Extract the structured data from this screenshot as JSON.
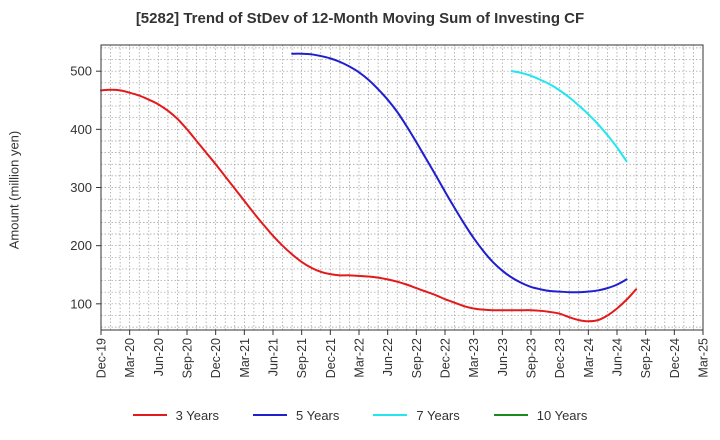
{
  "chart_data": {
    "type": "line",
    "title": "[5282]  Trend of StDev of 12-Month Moving Sum of Investing CF",
    "xlabel": "",
    "ylabel": "Amount (million yen)",
    "ylim": [
      55,
      545
    ],
    "yticks": [
      100,
      200,
      300,
      400,
      500
    ],
    "x_tick_labels": [
      "Dec-19",
      "Mar-20",
      "Jun-20",
      "Sep-20",
      "Dec-20",
      "Mar-21",
      "Jun-21",
      "Sep-21",
      "Dec-21",
      "Mar-22",
      "Jun-22",
      "Sep-22",
      "Dec-22",
      "Mar-23",
      "Jun-23",
      "Sep-23",
      "Dec-23",
      "Mar-24",
      "Jun-24",
      "Sep-24",
      "Dec-24",
      "Mar-25"
    ],
    "grid": true,
    "legend_position": "bottom",
    "series": [
      {
        "name": "3 Years",
        "color": "#e31a1c",
        "points": [
          [
            "Dec-19",
            467
          ],
          [
            "Jan-20",
            468
          ],
          [
            "Feb-20",
            467
          ],
          [
            "Mar-20",
            463
          ],
          [
            "Apr-20",
            458
          ],
          [
            "May-20",
            451
          ],
          [
            "Jun-20",
            443
          ],
          [
            "Jul-20",
            432
          ],
          [
            "Aug-20",
            418
          ],
          [
            "Sep-20",
            400
          ],
          [
            "Oct-20",
            380
          ],
          [
            "Nov-20",
            360
          ],
          [
            "Dec-20",
            340
          ],
          [
            "Jan-21",
            319
          ],
          [
            "Feb-21",
            298
          ],
          [
            "Mar-21",
            277
          ],
          [
            "Apr-21",
            256
          ],
          [
            "May-21",
            236
          ],
          [
            "Jun-21",
            217
          ],
          [
            "Jul-21",
            200
          ],
          [
            "Aug-21",
            185
          ],
          [
            "Sep-21",
            172
          ],
          [
            "Oct-21",
            162
          ],
          [
            "Nov-21",
            155
          ],
          [
            "Dec-21",
            151
          ],
          [
            "Jan-22",
            149
          ],
          [
            "Feb-22",
            149
          ],
          [
            "Mar-22",
            148
          ],
          [
            "Apr-22",
            147
          ],
          [
            "May-22",
            145
          ],
          [
            "Jun-22",
            142
          ],
          [
            "Jul-22",
            138
          ],
          [
            "Aug-22",
            133
          ],
          [
            "Sep-22",
            127
          ],
          [
            "Oct-22",
            121
          ],
          [
            "Nov-22",
            115
          ],
          [
            "Dec-22",
            108
          ],
          [
            "Jan-23",
            102
          ],
          [
            "Feb-23",
            96
          ],
          [
            "Mar-23",
            92
          ],
          [
            "Apr-23",
            90
          ],
          [
            "May-23",
            89
          ],
          [
            "Jun-23",
            89
          ],
          [
            "Jul-23",
            89
          ],
          [
            "Aug-23",
            89
          ],
          [
            "Sep-23",
            89
          ],
          [
            "Oct-23",
            88
          ],
          [
            "Nov-23",
            86
          ],
          [
            "Dec-23",
            83
          ],
          [
            "Jan-24",
            77
          ],
          [
            "Feb-24",
            72
          ],
          [
            "Mar-24",
            70
          ],
          [
            "Apr-24",
            72
          ],
          [
            "May-24",
            80
          ],
          [
            "Jun-24",
            92
          ],
          [
            "Jul-24",
            107
          ],
          [
            "Aug-24",
            125
          ]
        ]
      },
      {
        "name": "5 Years",
        "color": "#1f1fd0",
        "points": [
          [
            "Aug-21",
            530
          ],
          [
            "Sep-21",
            530
          ],
          [
            "Oct-21",
            529
          ],
          [
            "Nov-21",
            526
          ],
          [
            "Dec-21",
            522
          ],
          [
            "Jan-22",
            516
          ],
          [
            "Feb-22",
            508
          ],
          [
            "Mar-22",
            498
          ],
          [
            "Apr-22",
            485
          ],
          [
            "May-22",
            469
          ],
          [
            "Jun-22",
            451
          ],
          [
            "Jul-22",
            430
          ],
          [
            "Aug-22",
            405
          ],
          [
            "Sep-22",
            378
          ],
          [
            "Oct-22",
            350
          ],
          [
            "Nov-22",
            322
          ],
          [
            "Dec-22",
            293
          ],
          [
            "Jan-23",
            265
          ],
          [
            "Feb-23",
            238
          ],
          [
            "Mar-23",
            213
          ],
          [
            "Apr-23",
            191
          ],
          [
            "May-23",
            172
          ],
          [
            "Jun-23",
            157
          ],
          [
            "Jul-23",
            145
          ],
          [
            "Aug-23",
            136
          ],
          [
            "Sep-23",
            129
          ],
          [
            "Oct-23",
            125
          ],
          [
            "Nov-23",
            122
          ],
          [
            "Dec-23",
            121
          ],
          [
            "Jan-24",
            120
          ],
          [
            "Feb-24",
            120
          ],
          [
            "Mar-24",
            121
          ],
          [
            "Apr-24",
            123
          ],
          [
            "May-24",
            127
          ],
          [
            "Jun-24",
            133
          ],
          [
            "Jul-24",
            142
          ]
        ]
      },
      {
        "name": "7 Years",
        "color": "#22e6f0",
        "points": [
          [
            "Jul-23",
            500
          ],
          [
            "Aug-23",
            497
          ],
          [
            "Sep-23",
            492
          ],
          [
            "Oct-23",
            485
          ],
          [
            "Nov-23",
            477
          ],
          [
            "Dec-23",
            467
          ],
          [
            "Jan-24",
            455
          ],
          [
            "Feb-24",
            441
          ],
          [
            "Mar-24",
            426
          ],
          [
            "Apr-24",
            409
          ],
          [
            "May-24",
            390
          ],
          [
            "Jun-24",
            369
          ],
          [
            "Jul-24",
            345
          ]
        ]
      },
      {
        "name": "10 Years",
        "color": "#1a8a1a",
        "points": []
      }
    ]
  }
}
